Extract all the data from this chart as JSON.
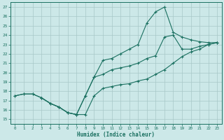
{
  "xlabel": "Humidex (Indice chaleur)",
  "xlim": [
    -0.5,
    23.5
  ],
  "ylim": [
    14.5,
    27.5
  ],
  "xticks": [
    0,
    1,
    2,
    3,
    4,
    5,
    6,
    7,
    8,
    9,
    10,
    11,
    12,
    13,
    14,
    15,
    16,
    17,
    18,
    19,
    20,
    21,
    22,
    23
  ],
  "yticks": [
    15,
    16,
    17,
    18,
    19,
    20,
    21,
    22,
    23,
    24,
    25,
    26,
    27
  ],
  "bg_color": "#cce8e8",
  "line_color": "#1a7060",
  "grid_color": "#a8c8c8",
  "line1_x": [
    0,
    1,
    2,
    3,
    4,
    5,
    6,
    7,
    8,
    9,
    10,
    11,
    12,
    13,
    14,
    15,
    16,
    17,
    18,
    19,
    20,
    21,
    22,
    23
  ],
  "line1_y": [
    17.5,
    17.7,
    17.7,
    17.3,
    16.7,
    16.3,
    15.7,
    15.5,
    15.5,
    17.5,
    18.3,
    18.5,
    18.7,
    18.8,
    19.1,
    19.3,
    19.8,
    20.3,
    21.0,
    21.7,
    22.2,
    22.5,
    23.0,
    23.2
  ],
  "line2_x": [
    0,
    1,
    2,
    3,
    4,
    5,
    6,
    7,
    8,
    9,
    10,
    11,
    12,
    13,
    14,
    15,
    16,
    17,
    18,
    19,
    20,
    21,
    22,
    23
  ],
  "line2_y": [
    17.5,
    17.7,
    17.7,
    17.3,
    16.7,
    16.3,
    15.7,
    15.5,
    17.5,
    19.5,
    21.3,
    21.5,
    22.0,
    22.5,
    23.0,
    25.3,
    26.5,
    27.0,
    24.3,
    23.8,
    23.5,
    23.3,
    23.2,
    23.2
  ],
  "line3_x": [
    3,
    4,
    5,
    6,
    7,
    8,
    9,
    10,
    11,
    12,
    13,
    14,
    15,
    16,
    17,
    18,
    19,
    20,
    21,
    22,
    23
  ],
  "line3_y": [
    17.3,
    16.7,
    16.3,
    15.7,
    15.5,
    17.5,
    19.5,
    19.8,
    20.3,
    20.5,
    20.7,
    21.0,
    21.5,
    21.8,
    23.8,
    24.0,
    22.5,
    22.5,
    22.8,
    23.0,
    23.2
  ],
  "markersize": 3.0,
  "linewidth": 0.8
}
